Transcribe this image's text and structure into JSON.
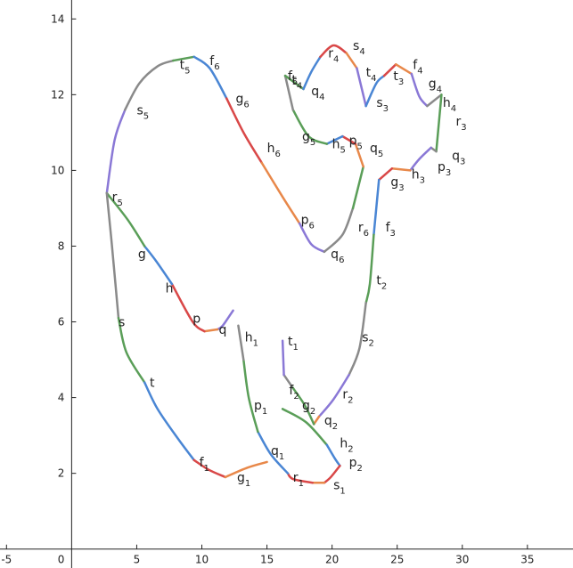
{
  "chart_data": {
    "type": "line",
    "title": "",
    "xlabel": "",
    "ylabel": "",
    "xlim": [
      -5.5,
      38.5
    ],
    "ylim": [
      -0.5,
      14.5
    ],
    "grid": false,
    "x_ticks": [
      -5,
      5,
      10,
      15,
      20,
      25,
      30,
      35
    ],
    "y_ticks": [
      2,
      4,
      6,
      8,
      10,
      12,
      14
    ],
    "origin_label": "0",
    "colors": {
      "blue": "#4a86d4",
      "red": "#d94848",
      "orange": "#e8884a",
      "purple": "#8a78d6",
      "green": "#5a9e58",
      "gray": "#8a8a8a"
    },
    "segments": [
      {
        "color": "purple",
        "points": [
          [
            2.7,
            9.4
          ],
          [
            3.3,
            10.8
          ],
          [
            4.1,
            11.6
          ]
        ]
      },
      {
        "color": "gray",
        "points": [
          [
            4.1,
            11.6
          ],
          [
            5.2,
            12.3
          ],
          [
            6.6,
            12.75
          ],
          [
            7.8,
            12.9
          ]
        ]
      },
      {
        "color": "green",
        "points": [
          [
            7.8,
            12.9
          ],
          [
            9.4,
            13.0
          ]
        ]
      },
      {
        "color": "blue",
        "points": [
          [
            9.4,
            13.0
          ],
          [
            10.6,
            12.7
          ],
          [
            11.9,
            11.9
          ]
        ]
      },
      {
        "color": "red",
        "points": [
          [
            11.9,
            11.9
          ],
          [
            13.2,
            11.0
          ],
          [
            14.6,
            10.2
          ]
        ]
      },
      {
        "color": "orange",
        "points": [
          [
            14.6,
            10.2
          ],
          [
            16.2,
            9.3
          ],
          [
            17.5,
            8.6
          ]
        ]
      },
      {
        "color": "purple",
        "points": [
          [
            17.5,
            8.6
          ],
          [
            18.4,
            8.05
          ],
          [
            19.4,
            7.85
          ]
        ]
      },
      {
        "color": "gray",
        "points": [
          [
            19.4,
            7.85
          ],
          [
            20.8,
            8.3
          ],
          [
            21.6,
            9.0
          ]
        ]
      },
      {
        "color": "green",
        "points": [
          [
            21.6,
            9.0
          ],
          [
            22.4,
            10.1
          ]
        ]
      },
      {
        "color": "orange",
        "points": [
          [
            22.4,
            10.1
          ],
          [
            21.8,
            10.7
          ]
        ]
      },
      {
        "color": "red",
        "points": [
          [
            21.8,
            10.7
          ],
          [
            20.8,
            10.9
          ]
        ]
      },
      {
        "color": "blue",
        "points": [
          [
            20.8,
            10.9
          ],
          [
            19.6,
            10.7
          ]
        ]
      },
      {
        "color": "green",
        "points": [
          [
            19.6,
            10.7
          ],
          [
            18.2,
            10.9
          ],
          [
            17.0,
            11.6
          ]
        ]
      },
      {
        "color": "gray",
        "points": [
          [
            17.0,
            11.6
          ],
          [
            16.4,
            12.5
          ]
        ]
      },
      {
        "color": "green",
        "points": [
          [
            16.4,
            12.5
          ],
          [
            17.8,
            12.15
          ]
        ]
      },
      {
        "color": "blue",
        "points": [
          [
            17.8,
            12.15
          ],
          [
            18.4,
            12.6
          ],
          [
            19.1,
            13.0
          ]
        ]
      },
      {
        "color": "red",
        "points": [
          [
            19.1,
            13.0
          ],
          [
            20.1,
            13.3
          ],
          [
            21.1,
            13.1
          ]
        ]
      },
      {
        "color": "orange",
        "points": [
          [
            21.1,
            13.1
          ],
          [
            21.9,
            12.7
          ]
        ]
      },
      {
        "color": "purple",
        "points": [
          [
            21.9,
            12.7
          ],
          [
            22.6,
            11.7
          ]
        ]
      },
      {
        "color": "blue",
        "points": [
          [
            22.6,
            11.7
          ],
          [
            23.4,
            12.3
          ],
          [
            24.0,
            12.5
          ]
        ]
      },
      {
        "color": "red",
        "points": [
          [
            24.0,
            12.5
          ],
          [
            24.9,
            12.8
          ]
        ]
      },
      {
        "color": "orange",
        "points": [
          [
            24.9,
            12.8
          ],
          [
            26.1,
            12.55
          ]
        ]
      },
      {
        "color": "purple",
        "points": [
          [
            26.1,
            12.55
          ],
          [
            26.7,
            11.95
          ],
          [
            27.3,
            11.7
          ]
        ]
      },
      {
        "color": "gray",
        "points": [
          [
            27.3,
            11.7
          ],
          [
            28.4,
            12.0
          ]
        ]
      },
      {
        "color": "green",
        "points": [
          [
            28.4,
            12.0
          ],
          [
            28.0,
            10.5
          ]
        ]
      },
      {
        "color": "gray",
        "points": [
          [
            28.0,
            10.5
          ],
          [
            27.6,
            10.6
          ]
        ]
      },
      {
        "color": "purple",
        "points": [
          [
            27.6,
            10.6
          ],
          [
            26.7,
            10.3
          ],
          [
            26.0,
            10.0
          ]
        ]
      },
      {
        "color": "orange",
        "points": [
          [
            26.0,
            10.0
          ],
          [
            24.6,
            10.05
          ]
        ]
      },
      {
        "color": "red",
        "points": [
          [
            24.6,
            10.05
          ],
          [
            23.6,
            9.75
          ]
        ]
      },
      {
        "color": "blue",
        "points": [
          [
            23.6,
            9.75
          ],
          [
            23.2,
            8.3
          ]
        ]
      },
      {
        "color": "green",
        "points": [
          [
            23.2,
            8.3
          ],
          [
            22.9,
            7.0
          ],
          [
            22.6,
            6.5
          ]
        ]
      },
      {
        "color": "gray",
        "points": [
          [
            22.6,
            6.5
          ],
          [
            22.1,
            5.3
          ],
          [
            21.3,
            4.6
          ]
        ]
      },
      {
        "color": "purple",
        "points": [
          [
            21.3,
            4.6
          ],
          [
            20.1,
            3.95
          ],
          [
            19.0,
            3.5
          ]
        ]
      },
      {
        "color": "orange",
        "points": [
          [
            19.0,
            3.5
          ],
          [
            18.6,
            3.3
          ]
        ]
      },
      {
        "color": "green",
        "points": [
          [
            18.6,
            3.3
          ],
          [
            17.9,
            3.8
          ],
          [
            16.9,
            4.3
          ]
        ]
      },
      {
        "color": "gray",
        "points": [
          [
            16.9,
            4.3
          ],
          [
            16.3,
            4.6
          ]
        ]
      },
      {
        "color": "purple",
        "points": [
          [
            16.3,
            4.6
          ],
          [
            16.2,
            5.5
          ]
        ]
      },
      {
        "color": "green",
        "points": [
          [
            16.2,
            3.7
          ],
          [
            18.0,
            3.35
          ],
          [
            19.6,
            2.75
          ]
        ]
      },
      {
        "color": "blue",
        "points": [
          [
            19.6,
            2.75
          ],
          [
            20.2,
            2.4
          ],
          [
            20.6,
            2.2
          ]
        ]
      },
      {
        "color": "red",
        "points": [
          [
            20.6,
            2.2
          ],
          [
            19.9,
            1.9
          ],
          [
            19.4,
            1.75
          ]
        ]
      },
      {
        "color": "orange",
        "points": [
          [
            19.4,
            1.75
          ],
          [
            18.5,
            1.75
          ]
        ]
      },
      {
        "color": "red",
        "points": [
          [
            18.5,
            1.75
          ],
          [
            17.0,
            1.85
          ],
          [
            16.6,
            2.0
          ]
        ]
      },
      {
        "color": "blue",
        "points": [
          [
            16.6,
            2.0
          ],
          [
            15.3,
            2.5
          ],
          [
            14.3,
            3.1
          ]
        ]
      },
      {
        "color": "green",
        "points": [
          [
            14.3,
            3.1
          ],
          [
            13.6,
            4.0
          ],
          [
            13.2,
            5.0
          ]
        ]
      },
      {
        "color": "gray",
        "points": [
          [
            13.2,
            5.0
          ],
          [
            12.8,
            5.9
          ]
        ]
      },
      {
        "color": "purple",
        "points": [
          [
            12.4,
            6.3
          ],
          [
            11.6,
            5.9
          ],
          [
            11.2,
            5.8
          ]
        ]
      },
      {
        "color": "orange",
        "points": [
          [
            11.2,
            5.8
          ],
          [
            10.2,
            5.75
          ]
        ]
      },
      {
        "color": "red",
        "points": [
          [
            10.2,
            5.75
          ],
          [
            9.3,
            6.0
          ],
          [
            7.7,
            7.0
          ]
        ]
      },
      {
        "color": "blue",
        "points": [
          [
            7.7,
            7.0
          ],
          [
            6.5,
            7.6
          ],
          [
            5.6,
            8.0
          ]
        ]
      },
      {
        "color": "green",
        "points": [
          [
            5.6,
            8.0
          ],
          [
            4.3,
            8.7
          ],
          [
            2.7,
            9.4
          ]
        ]
      },
      {
        "color": "gray",
        "points": [
          [
            2.7,
            9.4
          ],
          [
            3.1,
            8.0
          ],
          [
            3.6,
            6.1
          ]
        ]
      },
      {
        "color": "green",
        "points": [
          [
            3.6,
            6.1
          ],
          [
            4.2,
            5.2
          ],
          [
            5.6,
            4.4
          ]
        ]
      },
      {
        "color": "blue",
        "points": [
          [
            5.6,
            4.4
          ],
          [
            6.6,
            3.7
          ],
          [
            8.2,
            2.9
          ],
          [
            9.4,
            2.35
          ]
        ]
      },
      {
        "color": "red",
        "points": [
          [
            9.4,
            2.35
          ],
          [
            10.5,
            2.1
          ],
          [
            11.8,
            1.9
          ]
        ]
      },
      {
        "color": "orange",
        "points": [
          [
            11.8,
            1.9
          ],
          [
            13.5,
            2.15
          ],
          [
            15.0,
            2.3
          ]
        ]
      }
    ],
    "labels": [
      {
        "base": "r",
        "sub": "5",
        "color": "purple",
        "x": 3.1,
        "y": 9.3
      },
      {
        "base": "s",
        "sub": "5",
        "color": "gray",
        "x": 5.0,
        "y": 11.6
      },
      {
        "base": "t",
        "sub": "5",
        "color": "green",
        "x": 8.3,
        "y": 12.8
      },
      {
        "base": "f",
        "sub": "6",
        "color": "blue",
        "x": 10.6,
        "y": 12.9
      },
      {
        "base": "g",
        "sub": "6",
        "color": "red",
        "x": 12.6,
        "y": 11.9
      },
      {
        "base": "h",
        "sub": "6",
        "color": "orange",
        "x": 15.0,
        "y": 10.6
      },
      {
        "base": "p",
        "sub": "6",
        "color": "purple",
        "x": 17.6,
        "y": 8.7
      },
      {
        "base": "q",
        "sub": "6",
        "color": "gray",
        "x": 19.9,
        "y": 7.8
      },
      {
        "base": "r",
        "sub": "6",
        "color": "green",
        "x": 22.0,
        "y": 8.5
      },
      {
        "base": "q",
        "sub": "5",
        "color": "orange",
        "x": 22.9,
        "y": 10.6
      },
      {
        "base": "p",
        "sub": "5",
        "color": "red",
        "x": 21.3,
        "y": 10.8
      },
      {
        "base": "h",
        "sub": "5",
        "color": "blue",
        "x": 20.0,
        "y": 10.7
      },
      {
        "base": "g",
        "sub": "5",
        "color": "green",
        "x": 17.7,
        "y": 10.9
      },
      {
        "base": "f",
        "sub": "5",
        "color": "gray",
        "x": 16.6,
        "y": 12.5
      },
      {
        "base": "t",
        "sub": "4",
        "color": "green",
        "x": 16.9,
        "y": 12.4
      },
      {
        "base": "q",
        "sub": "4",
        "color": "blue",
        "x": 18.4,
        "y": 12.1
      },
      {
        "base": "r",
        "sub": "4",
        "color": "red",
        "x": 19.7,
        "y": 13.1
      },
      {
        "base": "s",
        "sub": "4",
        "color": "orange",
        "x": 21.6,
        "y": 13.3
      },
      {
        "base": "t",
        "sub": "4",
        "color": "purple",
        "x": 22.6,
        "y": 12.6
      },
      {
        "base": "s",
        "sub": "3",
        "color": "blue",
        "x": 23.4,
        "y": 11.8
      },
      {
        "base": "t",
        "sub": "3",
        "color": "red",
        "x": 24.7,
        "y": 12.5
      },
      {
        "base": "f",
        "sub": "4",
        "color": "orange",
        "x": 26.2,
        "y": 12.8
      },
      {
        "base": "g",
        "sub": "4",
        "color": "purple",
        "x": 27.4,
        "y": 12.3
      },
      {
        "base": "h",
        "sub": "4",
        "color": "gray",
        "x": 28.5,
        "y": 11.8
      },
      {
        "base": "r",
        "sub": "3",
        "color": "green",
        "x": 29.5,
        "y": 11.3
      },
      {
        "base": "q",
        "sub": "3",
        "color": "gray",
        "x": 29.2,
        "y": 10.4
      },
      {
        "base": "p",
        "sub": "3",
        "color": "purple",
        "x": 28.1,
        "y": 10.1
      },
      {
        "base": "h",
        "sub": "3",
        "color": "orange",
        "x": 26.1,
        "y": 9.9
      },
      {
        "base": "g",
        "sub": "3",
        "color": "red",
        "x": 24.5,
        "y": 9.7
      },
      {
        "base": "f",
        "sub": "3",
        "color": "blue",
        "x": 24.1,
        "y": 8.5
      },
      {
        "base": "t",
        "sub": "2",
        "color": "green",
        "x": 23.4,
        "y": 7.1
      },
      {
        "base": "s",
        "sub": "2",
        "color": "gray",
        "x": 22.3,
        "y": 5.6
      },
      {
        "base": "r",
        "sub": "2",
        "color": "purple",
        "x": 20.8,
        "y": 4.1
      },
      {
        "base": "q",
        "sub": "2",
        "color": "orange",
        "x": 19.4,
        "y": 3.4
      },
      {
        "base": "g",
        "sub": "2",
        "color": "green",
        "x": 17.7,
        "y": 3.8
      },
      {
        "base": "f",
        "sub": "2",
        "color": "gray",
        "x": 16.7,
        "y": 4.2
      },
      {
        "base": "t",
        "sub": "1",
        "color": "purple",
        "x": 16.6,
        "y": 5.5
      },
      {
        "base": "h",
        "sub": "2",
        "color": "blue",
        "x": 20.6,
        "y": 2.8
      },
      {
        "base": "p",
        "sub": "2",
        "color": "red",
        "x": 21.3,
        "y": 2.3
      },
      {
        "base": "s",
        "sub": "1",
        "color": "orange",
        "x": 20.1,
        "y": 1.7
      },
      {
        "base": "r",
        "sub": "1",
        "color": "red",
        "x": 17.0,
        "y": 1.9
      },
      {
        "base": "q",
        "sub": "1",
        "color": "blue",
        "x": 15.3,
        "y": 2.6
      },
      {
        "base": "p",
        "sub": "1",
        "color": "green",
        "x": 14.0,
        "y": 3.8
      },
      {
        "base": "h",
        "sub": "1",
        "color": "gray",
        "x": 13.3,
        "y": 5.6
      },
      {
        "base": "q",
        "sub": "",
        "color": "purple",
        "x": 11.3,
        "y": 5.8
      },
      {
        "base": "p",
        "sub": "",
        "color": "orange",
        "x": 9.3,
        "y": 6.1
      },
      {
        "base": "h",
        "sub": "",
        "color": "red",
        "x": 7.2,
        "y": 6.9
      },
      {
        "base": "g",
        "sub": "",
        "color": "blue",
        "x": 5.1,
        "y": 7.8
      },
      {
        "base": "s",
        "sub": "",
        "color": "green",
        "x": 3.6,
        "y": 6.0
      },
      {
        "base": "t",
        "sub": "",
        "color": "blue",
        "x": 6.0,
        "y": 4.4
      },
      {
        "base": "f",
        "sub": "1",
        "color": "red",
        "x": 9.8,
        "y": 2.3
      },
      {
        "base": "g",
        "sub": "1",
        "color": "orange",
        "x": 12.7,
        "y": 1.9
      }
    ]
  }
}
